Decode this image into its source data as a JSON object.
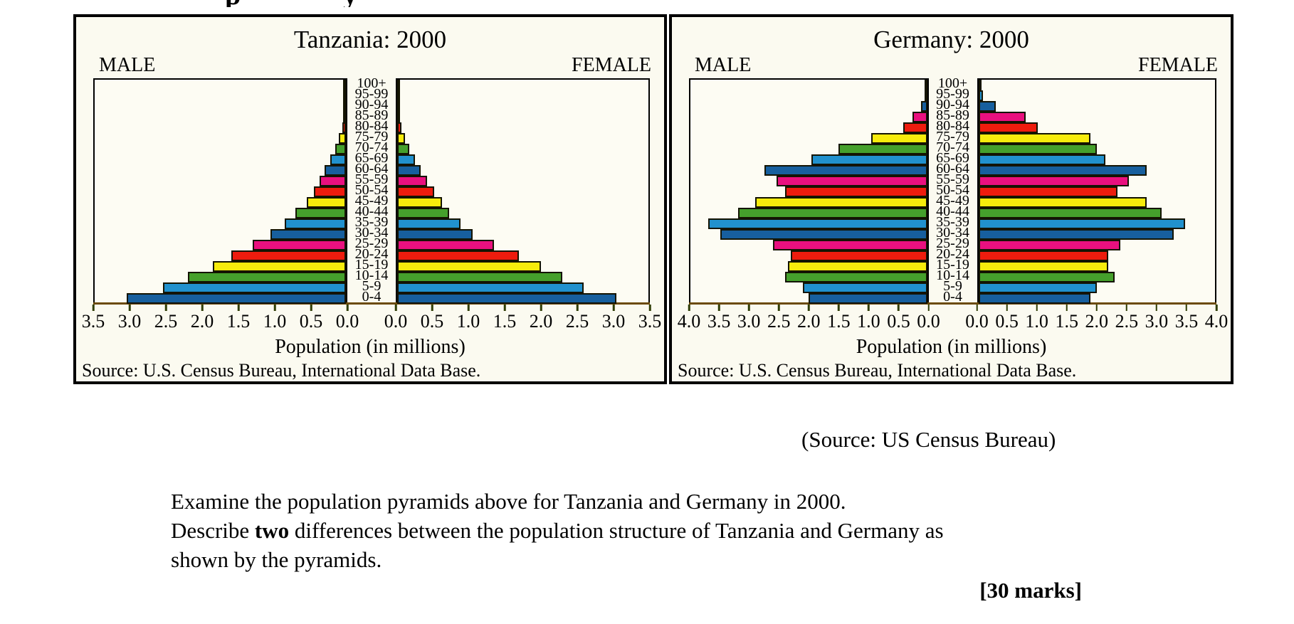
{
  "page": {
    "top_cutoff_fragments": [
      "p",
      "y"
    ],
    "caption": "(Source: US Census Bureau)",
    "question": {
      "line1": "Examine the population pyramids above for Tanzania and Germany in 2000.",
      "line2a": "Describe ",
      "line2_bold": "two",
      "line2b": " differences between the population structure of Tanzania and Germany as",
      "line3": "shown by the pyramids.",
      "marks": "[30 marks]"
    }
  },
  "colors": {
    "bar_cycle_bottom_up": [
      "#175f9e",
      "#2191ce",
      "#45a02c",
      "#f7ec0c",
      "#ee1c0e",
      "#e9107f"
    ],
    "bar_border": "#141402",
    "axis_baseline": "#6b4a08",
    "tick": "#2f3d05",
    "panel_bg": "#fbfaf0",
    "plot_bg": "#fdfcf3",
    "border": "#000000"
  },
  "chart_data": [
    {
      "type": "bar",
      "subtype": "population_pyramid",
      "title": "Tanzania: 2000",
      "male_label": "MALE",
      "female_label": "FEMALE",
      "xlabel": "Population (in millions)",
      "source": "Source: U.S. Census Bureau, International Data Base.",
      "axis_max": 3.5,
      "tick_step": 0.5,
      "male_tick_labels": [
        "3.5",
        "3.0",
        "2.5",
        "2.0",
        "1.5",
        "1.0",
        "0.5",
        "0.0"
      ],
      "female_tick_labels": [
        "0.0",
        "0.5",
        "1.0",
        "1.5",
        "2.0",
        "2.5",
        "3.0",
        "3.5"
      ],
      "age_groups_top_down": [
        "100+",
        "95-99",
        "90-94",
        "85-89",
        "80-84",
        "75-79",
        "70-74",
        "65-69",
        "60-64",
        "55-59",
        "50-54",
        "45-49",
        "40-44",
        "35-39",
        "30-34",
        "25-29",
        "20-24",
        "15-19",
        "10-14",
        "5-9",
        "0-4"
      ],
      "series": [
        {
          "name": "male",
          "values_top_down": [
            0.005,
            0.01,
            0.015,
            0.03,
            0.05,
            0.1,
            0.15,
            0.22,
            0.3,
            0.37,
            0.45,
            0.55,
            0.7,
            0.85,
            1.05,
            1.3,
            1.6,
            1.85,
            2.2,
            2.55,
            3.05
          ]
        },
        {
          "name": "female",
          "values_top_down": [
            0.005,
            0.01,
            0.02,
            0.035,
            0.06,
            0.11,
            0.17,
            0.25,
            0.33,
            0.42,
            0.52,
            0.62,
            0.72,
            0.88,
            1.05,
            1.35,
            1.7,
            2.0,
            2.3,
            2.6,
            3.05
          ]
        }
      ]
    },
    {
      "type": "bar",
      "subtype": "population_pyramid",
      "title": "Germany: 2000",
      "male_label": "MALE",
      "female_label": "FEMALE",
      "xlabel": "Population (in millions)",
      "source": "Source: U.S. Census Bureau, International Data Base.",
      "axis_max": 4.0,
      "tick_step": 0.5,
      "male_tick_labels": [
        "4.0",
        "3.5",
        "3.0",
        "2.5",
        "2.0",
        "1.5",
        "1.0",
        "0.5",
        "0.0"
      ],
      "female_tick_labels": [
        "0.0",
        "0.5",
        "1.0",
        "1.5",
        "2.0",
        "2.5",
        "3.0",
        "3.5",
        "4.0"
      ],
      "age_groups_top_down": [
        "100+",
        "95-99",
        "90-94",
        "85-89",
        "80-84",
        "75-79",
        "70-74",
        "65-69",
        "60-64",
        "55-59",
        "50-54",
        "45-49",
        "40-44",
        "35-39",
        "30-34",
        "25-29",
        "20-24",
        "15-19",
        "10-14",
        "5-9",
        "0-4"
      ],
      "series": [
        {
          "name": "male",
          "values_top_down": [
            0.01,
            0.04,
            0.1,
            0.25,
            0.4,
            0.95,
            1.5,
            1.95,
            2.75,
            2.55,
            2.4,
            2.9,
            3.2,
            3.7,
            3.5,
            2.6,
            2.3,
            2.35,
            2.4,
            2.1,
            2.0
          ]
        },
        {
          "name": "female",
          "values_top_down": [
            0.02,
            0.08,
            0.3,
            0.8,
            1.0,
            1.9,
            2.0,
            2.15,
            2.85,
            2.55,
            2.35,
            2.85,
            3.1,
            3.5,
            3.3,
            2.4,
            2.2,
            2.2,
            2.3,
            2.0,
            1.9
          ]
        }
      ]
    }
  ]
}
